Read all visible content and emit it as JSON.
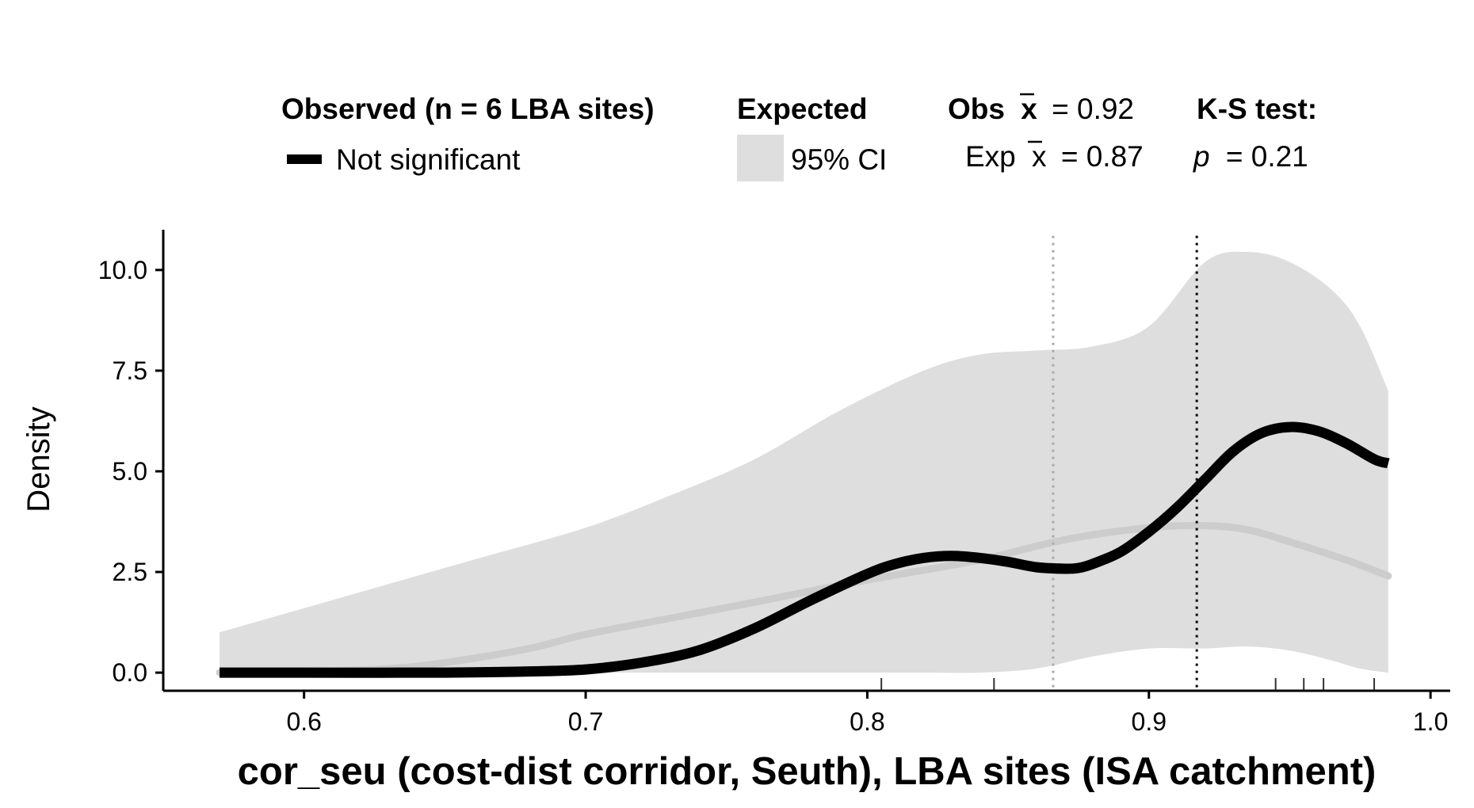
{
  "chart_data": {
    "type": "area",
    "xlabel": "cor_seu (cost-dist corridor, Seuth), LBA sites (ISA catchment)",
    "ylabel": "Density",
    "xlim": [
      0.55,
      1.007
    ],
    "ylim": [
      -0.45,
      11.0
    ],
    "x_ticks": [
      {
        "value": 0.6,
        "label": "0.6"
      },
      {
        "value": 0.7,
        "label": "0.7"
      },
      {
        "value": 0.8,
        "label": "0.8"
      },
      {
        "value": 0.9,
        "label": "0.9"
      },
      {
        "value": 1.0,
        "label": "1.0"
      }
    ],
    "y_ticks": [
      {
        "value": 0.0,
        "label": "0.0"
      },
      {
        "value": 2.5,
        "label": "2.5"
      },
      {
        "value": 5.0,
        "label": "5.0"
      },
      {
        "value": 7.5,
        "label": "7.5"
      },
      {
        "value": 10.0,
        "label": "10.0"
      }
    ],
    "grid": false,
    "legend_position": "top",
    "legend": {
      "observed_title": "Observed (n = 6 LBA sites)",
      "observed_item": "Not significant",
      "expected_title": "Expected",
      "expected_item": "95% CI",
      "obs_mean_prefix": "Obs",
      "obs_mean_value": "= 0.92",
      "exp_mean_prefix": "Exp",
      "exp_mean_value": "= 0.87",
      "mean_symbol": "x",
      "ks_title": "K-S test:",
      "ks_p_symbol": "p",
      "ks_p_value": "= 0.21"
    },
    "colors": {
      "observed": "#000000",
      "ci_band": "#dedede",
      "expected_mean": "#cccccc",
      "obs_mean_line": "#000000",
      "exp_mean_line": "#aaaaaa"
    },
    "ci_band": {
      "x": [
        0.57,
        0.6,
        0.63,
        0.66,
        0.7,
        0.73,
        0.76,
        0.79,
        0.82,
        0.84,
        0.86,
        0.88,
        0.9,
        0.92,
        0.935,
        0.95,
        0.965,
        0.975,
        0.985
      ],
      "upper": [
        1.0,
        1.6,
        2.2,
        2.8,
        3.6,
        4.4,
        5.3,
        6.5,
        7.5,
        7.9,
        8.0,
        8.1,
        8.6,
        10.2,
        10.45,
        10.2,
        9.5,
        8.6,
        7.0
      ],
      "lower": [
        0.0,
        0.0,
        0.0,
        0.0,
        0.0,
        0.0,
        0.0,
        0.0,
        0.0,
        0.0,
        0.1,
        0.4,
        0.6,
        0.6,
        0.65,
        0.55,
        0.3,
        0.1,
        0.0
      ]
    },
    "series": [
      {
        "name": "Not significant",
        "x": [
          0.57,
          0.6,
          0.65,
          0.68,
          0.7,
          0.72,
          0.74,
          0.76,
          0.78,
          0.8,
          0.81,
          0.82,
          0.83,
          0.84,
          0.85,
          0.86,
          0.87,
          0.875,
          0.88,
          0.89,
          0.9,
          0.91,
          0.92,
          0.93,
          0.94,
          0.95,
          0.96,
          0.97,
          0.98,
          0.985
        ],
        "y": [
          0.0,
          0.0,
          0.0,
          0.03,
          0.08,
          0.25,
          0.55,
          1.1,
          1.8,
          2.45,
          2.7,
          2.85,
          2.9,
          2.85,
          2.75,
          2.62,
          2.58,
          2.6,
          2.7,
          3.0,
          3.5,
          4.1,
          4.8,
          5.5,
          5.95,
          6.1,
          6.0,
          5.7,
          5.3,
          5.2
        ]
      },
      {
        "name": "",
        "x": [
          0.57,
          0.6,
          0.63,
          0.65,
          0.68,
          0.7,
          0.73,
          0.76,
          0.8,
          0.84,
          0.87,
          0.9,
          0.92,
          0.935,
          0.95,
          0.97,
          0.985
        ],
        "y": [
          0.0,
          0.02,
          0.1,
          0.25,
          0.6,
          0.95,
          1.35,
          1.75,
          2.3,
          2.8,
          3.3,
          3.6,
          3.65,
          3.55,
          3.25,
          2.8,
          2.4
        ]
      }
    ],
    "obs_mean_x": 0.917,
    "exp_mean_x": 0.866,
    "rug_x": [
      0.805,
      0.845,
      0.945,
      0.955,
      0.962,
      0.98
    ]
  }
}
